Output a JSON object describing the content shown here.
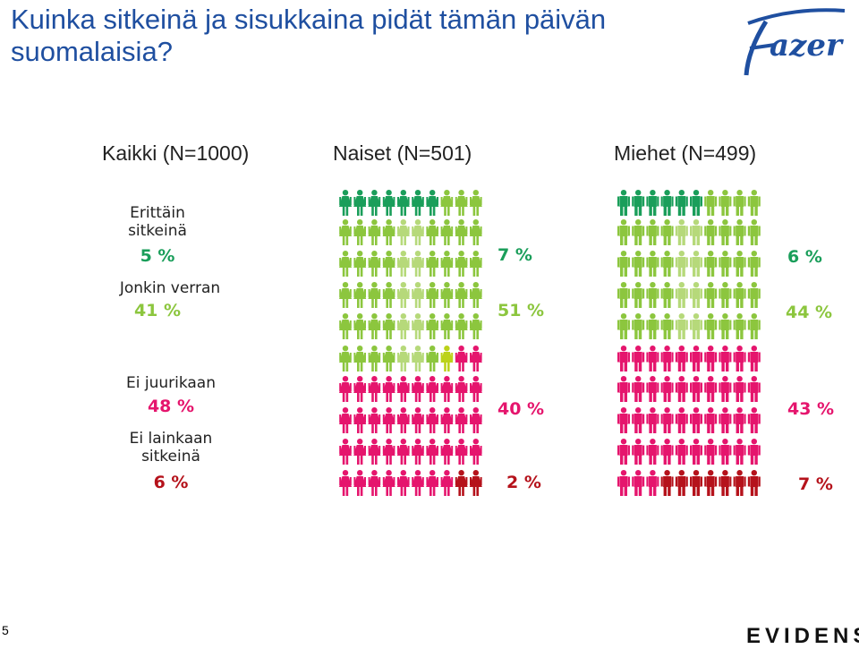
{
  "title": "Kuinka sitkeinä ja sisukkaina pidät tämän päivän suomalaisia?",
  "logo_text": "Fazer",
  "footer": {
    "page_number": "5",
    "brand": "EVIDENS"
  },
  "colors": {
    "very_tough": "#1a9e5a",
    "somewhat": "#8cc63e",
    "somewhat_light": "#b6d97a",
    "pivot": "#bcd21a",
    "hardly": "#e5156d",
    "not_at_all": "#b5121b",
    "title": "#1f4fa0"
  },
  "chart_data": {
    "type": "pictogram",
    "icon_rows": 10,
    "icon_cols": 10,
    "columns": [
      {
        "header": "Kaikki (N=1000)"
      },
      {
        "header": "Naiset (N=501)"
      },
      {
        "header": "Miehet (N=499)"
      }
    ],
    "categories": [
      {
        "label": "Erittäin sitkeinä",
        "all": "5 %",
        "women": "7 %",
        "men": "6 %"
      },
      {
        "label": "Jonkin verran",
        "all": "41 %",
        "women": "51 %",
        "men": "44 %"
      },
      {
        "label": "Ei juurikaan",
        "all": "48 %",
        "women": "40 %",
        "men": "43 %"
      },
      {
        "label": "Ei lainkaan sitkeinä",
        "all": "6 %",
        "women": "2 %",
        "men": "7 %"
      }
    ],
    "series": [
      {
        "group": "women",
        "icon": "female",
        "values": [
          7,
          51,
          40,
          2
        ]
      },
      {
        "group": "men",
        "icon": "male",
        "values": [
          6,
          44,
          43,
          7
        ]
      }
    ]
  }
}
